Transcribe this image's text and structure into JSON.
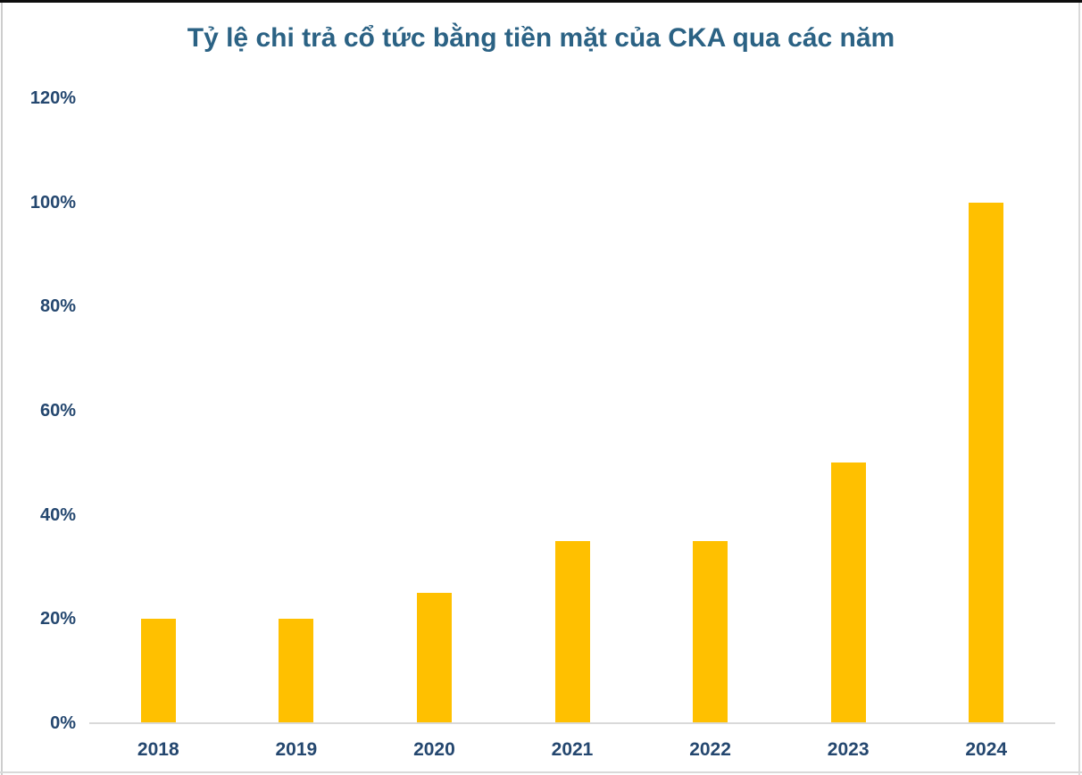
{
  "chart_data": {
    "type": "bar",
    "title": "Tỷ lệ chi trả cổ tức bằng tiền mặt của CKA qua các năm",
    "categories": [
      "2018",
      "2019",
      "2020",
      "2021",
      "2022",
      "2023",
      "2024"
    ],
    "values": [
      20,
      20,
      25,
      35,
      35,
      50,
      100
    ],
    "unit": "%",
    "xlabel": "",
    "ylabel": "",
    "ylim": [
      0,
      120
    ],
    "yticks": [
      0,
      20,
      40,
      60,
      80,
      100,
      120
    ],
    "ytick_labels": [
      "0%",
      "20%",
      "40%",
      "60%",
      "80%",
      "100%",
      "120%"
    ],
    "grid": false,
    "legend_position": "none",
    "colors": {
      "bar": "#FFC000",
      "title": "#2B6284",
      "axis_label": "#24476F",
      "axis_line": "#D9D9D9"
    }
  }
}
